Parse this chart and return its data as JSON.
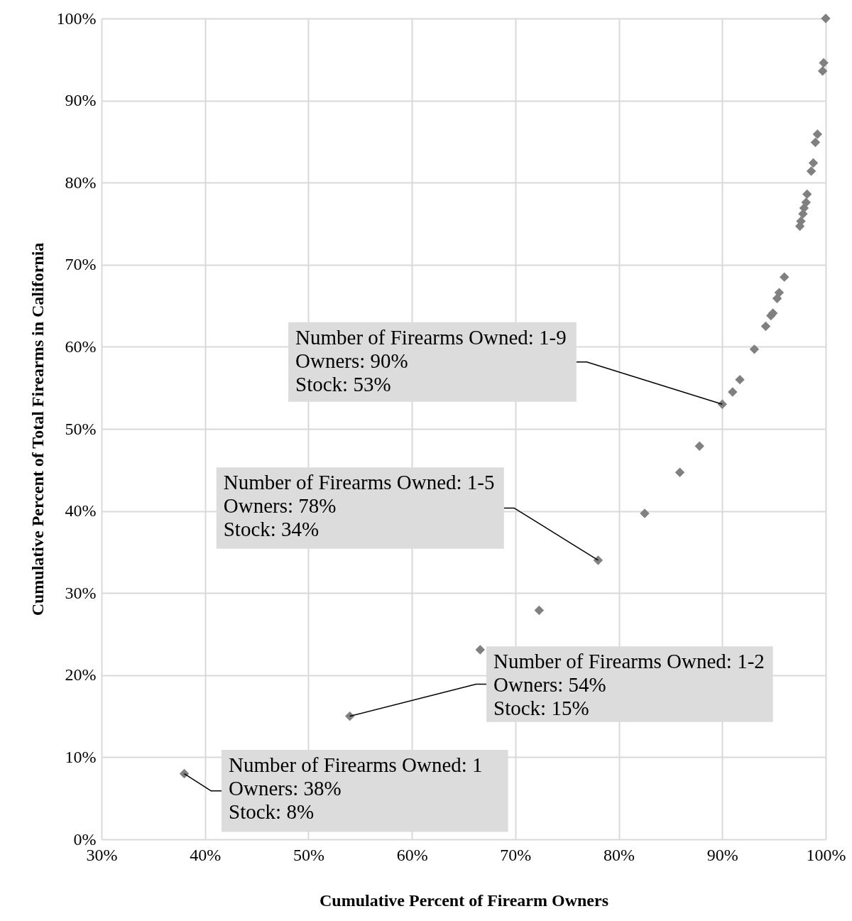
{
  "chart_data": {
    "type": "scatter",
    "xlabel": "Cumulative Percent of Firearm Owners",
    "ylabel": "Cumulative Percent of Total Firearms in California",
    "x": [
      38,
      54,
      66.6,
      72.3,
      78,
      82.5,
      85.9,
      87.8,
      90,
      91.0,
      91.7,
      93.1,
      94.2,
      94.7,
      94.9,
      95.3,
      95.5,
      96.0,
      97.5,
      97.6,
      97.8,
      97.9,
      98.1,
      98.2,
      98.6,
      98.8,
      99.0,
      99.2,
      99.7,
      99.8,
      100
    ],
    "series": [
      {
        "color": "#808080",
        "values": [
          8,
          15,
          23.1,
          27.9,
          34,
          39.7,
          44.7,
          47.9,
          53,
          54.5,
          56.0,
          59.7,
          62.5,
          63.8,
          64.1,
          65.9,
          66.6,
          68.5,
          74.7,
          75.3,
          76.2,
          76.9,
          77.6,
          78.6,
          81.4,
          82.4,
          84.9,
          85.9,
          93.6,
          94.6,
          100
        ]
      }
    ],
    "marker": "diamond",
    "xlim": [
      30,
      100
    ],
    "ylim": [
      0,
      100
    ],
    "xticks": [
      {
        "value": 30,
        "label": "30%"
      },
      {
        "value": 40,
        "label": "40%"
      },
      {
        "value": 50,
        "label": "50%"
      },
      {
        "value": 60,
        "label": "60%"
      },
      {
        "value": 70,
        "label": "70%"
      },
      {
        "value": 80,
        "label": "80%"
      },
      {
        "value": 90,
        "label": "90%"
      },
      {
        "value": 100,
        "label": "100%"
      }
    ],
    "yticks": [
      {
        "value": 0,
        "label": "0%"
      },
      {
        "value": 10,
        "label": "10%"
      },
      {
        "value": 20,
        "label": "20%"
      },
      {
        "value": 30,
        "label": "30%"
      },
      {
        "value": 40,
        "label": "40%"
      },
      {
        "value": 50,
        "label": "50%"
      },
      {
        "value": 60,
        "label": "60%"
      },
      {
        "value": 70,
        "label": "70%"
      },
      {
        "value": 80,
        "label": "80%"
      },
      {
        "value": 90,
        "label": "90%"
      },
      {
        "value": 100,
        "label": "100%"
      }
    ],
    "grid": true,
    "annotations": [
      {
        "text": "Number of Firearms Owned: 1-9\nOwners: 90%\nStock: 53%",
        "x": 90,
        "y": 53
      },
      {
        "text": "Number of Firearms Owned: 1-5\nOwners: 78%\nStock: 34%",
        "x": 78,
        "y": 34
      },
      {
        "text": "Number of Firearms Owned: 1-2\nOwners: 54%\nStock: 15%",
        "x": 54,
        "y": 15
      },
      {
        "text": "Number of Firearms Owned: 1\nOwners: 38%\nStock: 8%",
        "x": 38,
        "y": 8
      }
    ]
  }
}
